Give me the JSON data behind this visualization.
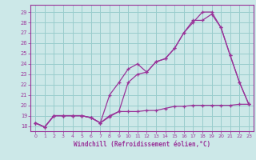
{
  "xlabel": "Windchill (Refroidissement éolien,°C)",
  "bg_color": "#cce8e8",
  "grid_color": "#99cccc",
  "line_color": "#993399",
  "xlim": [
    -0.5,
    23.5
  ],
  "ylim": [
    17.5,
    29.7
  ],
  "yticks": [
    18,
    19,
    20,
    21,
    22,
    23,
    24,
    25,
    26,
    27,
    28,
    29
  ],
  "xticks": [
    0,
    1,
    2,
    3,
    4,
    5,
    6,
    7,
    8,
    9,
    10,
    11,
    12,
    13,
    14,
    15,
    16,
    17,
    18,
    19,
    20,
    21,
    22,
    23
  ],
  "line1_x": [
    0,
    1,
    2,
    3,
    4,
    5,
    6,
    7,
    8,
    9,
    10,
    11,
    12,
    13,
    14,
    15,
    16,
    17,
    18,
    19,
    20,
    21,
    22,
    23
  ],
  "line1_y": [
    18.3,
    17.9,
    19.0,
    19.0,
    19.0,
    19.0,
    18.8,
    18.3,
    18.9,
    19.4,
    19.4,
    19.4,
    19.5,
    19.5,
    19.7,
    19.9,
    19.9,
    20.0,
    20.0,
    20.0,
    20.0,
    20.0,
    20.1,
    20.1
  ],
  "line2_x": [
    0,
    1,
    2,
    3,
    4,
    5,
    6,
    7,
    8,
    9,
    10,
    11,
    12,
    13,
    14,
    15,
    16,
    17,
    18,
    19,
    20,
    21,
    22,
    23
  ],
  "line2_y": [
    18.3,
    17.9,
    19.0,
    19.0,
    19.0,
    19.0,
    18.8,
    18.3,
    19.0,
    19.4,
    22.2,
    23.0,
    23.2,
    24.2,
    24.5,
    25.5,
    27.0,
    28.2,
    28.2,
    28.8,
    27.5,
    24.8,
    22.2,
    20.1
  ],
  "line3_x": [
    0,
    1,
    2,
    3,
    4,
    5,
    6,
    7,
    8,
    9,
    10,
    11,
    12,
    13,
    14,
    15,
    16,
    17,
    18,
    19,
    20,
    21,
    22,
    23
  ],
  "line3_y": [
    18.3,
    17.9,
    19.0,
    19.0,
    19.0,
    19.0,
    18.8,
    18.3,
    21.0,
    22.2,
    23.5,
    24.0,
    23.2,
    24.2,
    24.5,
    25.5,
    27.0,
    28.0,
    29.0,
    29.0,
    27.5,
    24.8,
    22.2,
    20.1
  ]
}
